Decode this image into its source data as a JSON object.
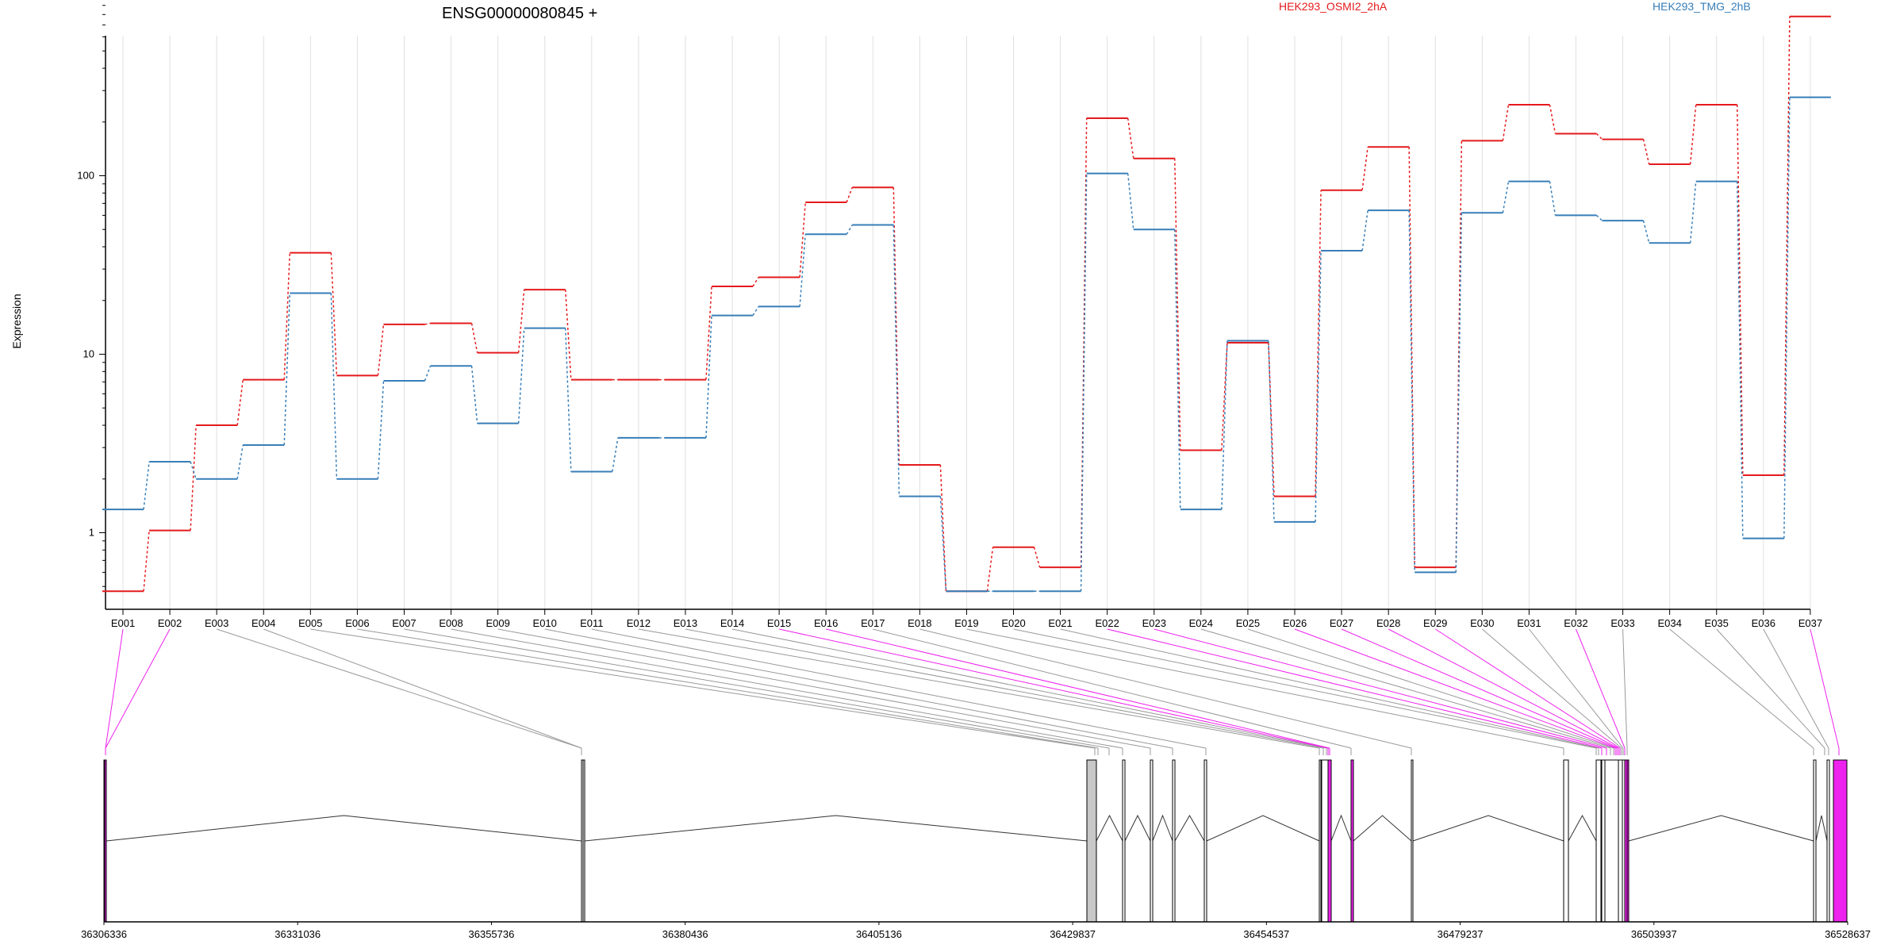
{
  "chart_data": {
    "type": "line",
    "title": "ENSG00000080845 +",
    "ylabel": "Expression",
    "y_scale": "log",
    "ylim": [
      0.45,
      900
    ],
    "yticks": [
      "1",
      "10",
      "100"
    ],
    "categories": [
      "E001",
      "E002",
      "E003",
      "E004",
      "E005",
      "E006",
      "E007",
      "E008",
      "E009",
      "E010",
      "E011",
      "E012",
      "E013",
      "E014",
      "E015",
      "E016",
      "E017",
      "E018",
      "E019",
      "E020",
      "E021",
      "E022",
      "E023",
      "E024",
      "E025",
      "E026",
      "E027",
      "E028",
      "E029",
      "E030",
      "E031",
      "E032",
      "E033",
      "E034",
      "E035",
      "E036",
      "E037"
    ],
    "series": [
      {
        "name": "HEK293_OSMI2_2hA",
        "color": "#e41a1c",
        "values": [
          0.47,
          1.03,
          4.0,
          7.2,
          37,
          7.6,
          14.7,
          14.9,
          10.2,
          23,
          7.2,
          7.2,
          7.2,
          24,
          27,
          71,
          86,
          2.4,
          0.47,
          0.83,
          0.64,
          210,
          125,
          2.9,
          11.6,
          1.6,
          83,
          145,
          0.64,
          157,
          250,
          172,
          160,
          116,
          250,
          2.1,
          780
        ]
      },
      {
        "name": "HEK293_TMG_2hB",
        "color": "#377eb8",
        "values": [
          1.35,
          2.5,
          2.0,
          3.1,
          22,
          2.0,
          7.1,
          8.6,
          4.1,
          14,
          2.2,
          3.4,
          3.4,
          16.5,
          18.5,
          47,
          53,
          1.6,
          0.47,
          0.47,
          0.47,
          103,
          50,
          1.35,
          11.9,
          1.15,
          38,
          64,
          0.6,
          62,
          93,
          60,
          56,
          42,
          93,
          0.93,
          275
        ]
      }
    ],
    "genomic_axis": {
      "start": 36306336,
      "end": 36528637,
      "tick_labels": [
        "36306336",
        "36331036",
        "36355736",
        "36380436",
        "36405136",
        "36429837",
        "36454537",
        "36479237",
        "36503937",
        "36528637"
      ]
    },
    "highlighted_exons": [
      "E001",
      "E002",
      "E015",
      "E016",
      "E022",
      "E023",
      "E026",
      "E027",
      "E028",
      "E029",
      "E032",
      "E037"
    ],
    "colors": {
      "highlight": "#ee22ee",
      "exon": "#ffffff",
      "exon_grey": "#c8c8c8",
      "connector": "#999999",
      "grid": "#e0e0e0"
    }
  }
}
